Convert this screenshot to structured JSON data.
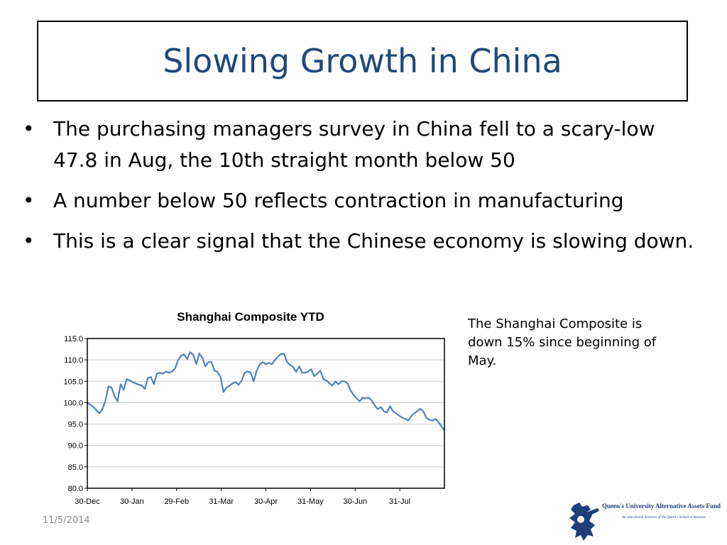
{
  "slide": {
    "title": "Slowing Growth in China",
    "bullets": [
      "The purchasing managers survey in China fell to a scary-low 47.8 in Aug, the 10th straight month below 50",
      "A number below 50 reflects contraction in manufacturing",
      "This is a clear signal that the Chinese economy is slowing down."
    ],
    "note": "The Shanghai Composite is down 15% since beginning of May.",
    "date": "11/5/2014",
    "logo": {
      "name": "Queen's University Alternative Assets Fund",
      "tagline": "An educational initiative of the Queen's School of Business"
    }
  },
  "colors": {
    "title": "#1f497d",
    "line": "#4f81bd"
  },
  "chart_data": {
    "type": "line",
    "title": "Shanghai Composite YTD",
    "xlabel": "",
    "ylabel": "",
    "ylim": [
      80.0,
      115.0
    ],
    "yticks": [
      "80.0",
      "85.0",
      "90.0",
      "95.0",
      "100.0",
      "105.0",
      "110.0",
      "115.0"
    ],
    "xticks": [
      "30-Dec",
      "30-Jan",
      "29-Feb",
      "31-Mar",
      "30-Apr",
      "31-May",
      "30-Jun",
      "31-Jul"
    ],
    "grid": true,
    "series": [
      {
        "values": [
          100.0,
          99.5,
          99.0,
          98.2,
          97.5,
          98.5,
          100.5,
          103.8,
          103.5,
          101.5,
          100.3,
          104.3,
          103.0,
          105.5,
          105.2,
          104.8,
          104.5,
          104.2,
          104.0,
          103.2,
          105.8,
          106.0,
          104.3,
          106.8,
          107.0,
          106.8,
          107.3,
          107.0,
          107.3,
          108.0,
          110.0,
          111.0,
          111.3,
          110.2,
          111.8,
          111.2,
          109.0,
          111.5,
          110.5,
          108.5,
          109.5,
          109.5,
          107.5,
          107.2,
          106.0,
          102.5,
          103.5,
          104.0,
          104.5,
          104.8,
          104.2,
          105.2,
          107.0,
          107.3,
          107.0,
          105.0,
          107.5,
          109.0,
          109.5,
          109.0,
          109.3,
          109.0,
          110.0,
          110.8,
          111.4,
          111.4,
          109.5,
          108.8,
          108.3,
          107.2,
          108.5,
          107.0,
          107.0,
          107.3,
          107.8,
          106.2,
          106.8,
          107.5,
          105.5,
          105.2,
          104.5,
          104.0,
          105.0,
          104.3,
          105.0,
          105.0,
          104.5,
          102.8,
          101.8,
          101.0,
          100.3,
          101.2,
          101.0,
          101.2,
          100.5,
          99.3,
          98.5,
          99.0,
          98.0,
          97.7,
          99.2,
          98.0,
          97.5,
          97.0,
          96.5,
          96.2,
          95.8,
          96.8,
          97.5,
          98.0,
          98.6,
          98.0,
          96.5,
          96.0,
          95.8,
          96.2,
          95.5,
          94.5,
          93.5
        ]
      }
    ]
  }
}
